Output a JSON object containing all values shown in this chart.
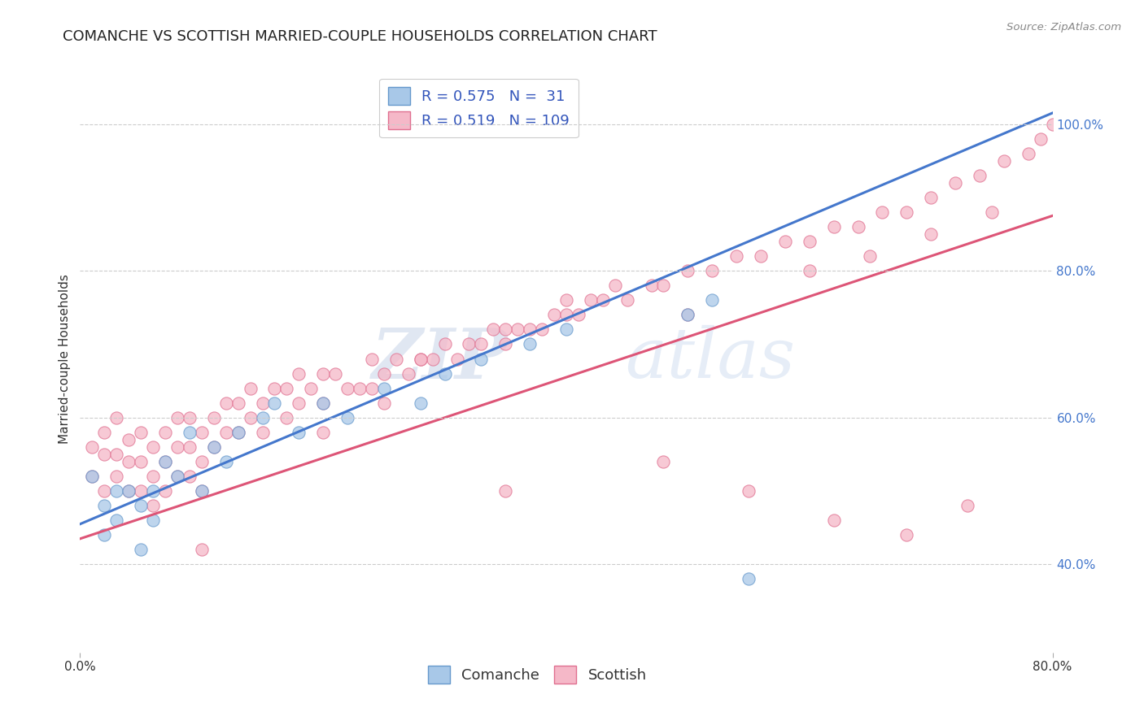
{
  "title": "COMANCHE VS SCOTTISH MARRIED-COUPLE HOUSEHOLDS CORRELATION CHART",
  "source_text": "Source: ZipAtlas.com",
  "ylabel": "Married-couple Households",
  "xlim": [
    0.0,
    0.8
  ],
  "ylim": [
    0.28,
    1.08
  ],
  "x_tick_positions": [
    0.0,
    0.8
  ],
  "x_tick_labels": [
    "0.0%",
    "80.0%"
  ],
  "y_ticks_right": [
    0.4,
    0.6,
    0.8,
    1.0
  ],
  "y_tick_labels_right": [
    "40.0%",
    "60.0%",
    "80.0%",
    "100.0%"
  ],
  "comanche_color": "#a8c8e8",
  "scottish_color": "#f5b8c8",
  "comanche_edge": "#6699cc",
  "scottish_edge": "#e07090",
  "line_comanche": "#4477cc",
  "line_scottish": "#dd5577",
  "R_comanche": 0.575,
  "N_comanche": 31,
  "R_scottish": 0.519,
  "N_scottish": 109,
  "watermark_zip": "ZIP",
  "watermark_atlas": "atlas",
  "background_color": "#ffffff",
  "comanche_x": [
    0.01,
    0.02,
    0.02,
    0.03,
    0.03,
    0.04,
    0.05,
    0.05,
    0.06,
    0.06,
    0.07,
    0.08,
    0.09,
    0.1,
    0.11,
    0.12,
    0.13,
    0.15,
    0.16,
    0.18,
    0.2,
    0.22,
    0.25,
    0.28,
    0.3,
    0.33,
    0.37,
    0.4,
    0.5,
    0.52,
    0.55
  ],
  "comanche_y": [
    0.52,
    0.48,
    0.44,
    0.5,
    0.46,
    0.5,
    0.48,
    0.42,
    0.5,
    0.46,
    0.54,
    0.52,
    0.58,
    0.5,
    0.56,
    0.54,
    0.58,
    0.6,
    0.62,
    0.58,
    0.62,
    0.6,
    0.64,
    0.62,
    0.66,
    0.68,
    0.7,
    0.72,
    0.74,
    0.76,
    0.38
  ],
  "scottish_x": [
    0.01,
    0.01,
    0.02,
    0.02,
    0.02,
    0.03,
    0.03,
    0.03,
    0.04,
    0.04,
    0.04,
    0.05,
    0.05,
    0.05,
    0.06,
    0.06,
    0.06,
    0.07,
    0.07,
    0.07,
    0.08,
    0.08,
    0.08,
    0.09,
    0.09,
    0.09,
    0.1,
    0.1,
    0.1,
    0.11,
    0.11,
    0.12,
    0.12,
    0.13,
    0.13,
    0.14,
    0.14,
    0.15,
    0.15,
    0.16,
    0.17,
    0.17,
    0.18,
    0.18,
    0.19,
    0.2,
    0.2,
    0.21,
    0.22,
    0.23,
    0.24,
    0.24,
    0.25,
    0.25,
    0.26,
    0.27,
    0.28,
    0.29,
    0.3,
    0.31,
    0.32,
    0.33,
    0.34,
    0.35,
    0.36,
    0.37,
    0.38,
    0.39,
    0.4,
    0.41,
    0.42,
    0.43,
    0.44,
    0.45,
    0.47,
    0.48,
    0.5,
    0.52,
    0.54,
    0.56,
    0.58,
    0.6,
    0.62,
    0.64,
    0.66,
    0.68,
    0.7,
    0.72,
    0.74,
    0.76,
    0.78,
    0.79,
    0.8,
    0.1,
    0.2,
    0.28,
    0.35,
    0.4,
    0.5,
    0.6,
    0.65,
    0.7,
    0.75,
    0.35,
    0.48,
    0.55,
    0.62,
    0.68,
    0.73
  ],
  "scottish_y": [
    0.56,
    0.52,
    0.58,
    0.55,
    0.5,
    0.6,
    0.55,
    0.52,
    0.57,
    0.54,
    0.5,
    0.58,
    0.54,
    0.5,
    0.56,
    0.52,
    0.48,
    0.58,
    0.54,
    0.5,
    0.6,
    0.56,
    0.52,
    0.6,
    0.56,
    0.52,
    0.58,
    0.54,
    0.5,
    0.6,
    0.56,
    0.62,
    0.58,
    0.62,
    0.58,
    0.64,
    0.6,
    0.62,
    0.58,
    0.64,
    0.64,
    0.6,
    0.66,
    0.62,
    0.64,
    0.66,
    0.62,
    0.66,
    0.64,
    0.64,
    0.68,
    0.64,
    0.66,
    0.62,
    0.68,
    0.66,
    0.68,
    0.68,
    0.7,
    0.68,
    0.7,
    0.7,
    0.72,
    0.7,
    0.72,
    0.72,
    0.72,
    0.74,
    0.74,
    0.74,
    0.76,
    0.76,
    0.78,
    0.76,
    0.78,
    0.78,
    0.8,
    0.8,
    0.82,
    0.82,
    0.84,
    0.84,
    0.86,
    0.86,
    0.88,
    0.88,
    0.9,
    0.92,
    0.93,
    0.95,
    0.96,
    0.98,
    1.0,
    0.42,
    0.58,
    0.68,
    0.72,
    0.76,
    0.74,
    0.8,
    0.82,
    0.85,
    0.88,
    0.5,
    0.54,
    0.5,
    0.46,
    0.44,
    0.48
  ],
  "comanche_size": 120,
  "scottish_size": 120,
  "title_fontsize": 13,
  "label_fontsize": 11,
  "legend_fontsize": 13,
  "tick_fontsize": 11
}
